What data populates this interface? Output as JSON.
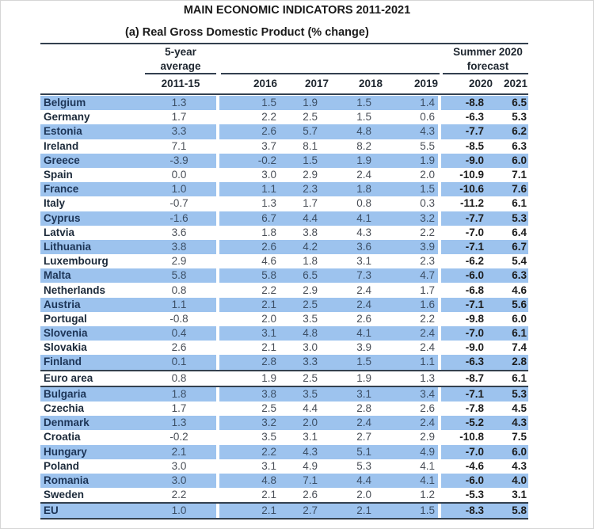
{
  "title": "MAIN ECONOMIC INDICATORS 2011-2021",
  "subtitle": "(a) Real Gross Domestic Product (% change)",
  "header": {
    "avg_line1": "5-year",
    "avg_line2": "average",
    "forecast_line1": "Summer 2020",
    "forecast_line2": "forecast",
    "columns": [
      "2011-15",
      "2016",
      "2017",
      "2018",
      "2019",
      "2020",
      "2021"
    ]
  },
  "colors": {
    "row_shade": "#9dc3ee",
    "rule": "#33404f"
  },
  "rows": [
    {
      "name": "Belgium",
      "shaded": true,
      "values": [
        "1.3",
        "1.5",
        "1.9",
        "1.5",
        "1.4",
        "-8.8",
        "6.5"
      ]
    },
    {
      "name": "Germany",
      "shaded": false,
      "values": [
        "1.7",
        "2.2",
        "2.5",
        "1.5",
        "0.6",
        "-6.3",
        "5.3"
      ]
    },
    {
      "name": "Estonia",
      "shaded": true,
      "values": [
        "3.3",
        "2.6",
        "5.7",
        "4.8",
        "4.3",
        "-7.7",
        "6.2"
      ]
    },
    {
      "name": "Ireland",
      "shaded": false,
      "values": [
        "7.1",
        "3.7",
        "8.1",
        "8.2",
        "5.5",
        "-8.5",
        "6.3"
      ]
    },
    {
      "name": "Greece",
      "shaded": true,
      "values": [
        "-3.9",
        "-0.2",
        "1.5",
        "1.9",
        "1.9",
        "-9.0",
        "6.0"
      ]
    },
    {
      "name": "Spain",
      "shaded": false,
      "values": [
        "0.0",
        "3.0",
        "2.9",
        "2.4",
        "2.0",
        "-10.9",
        "7.1"
      ]
    },
    {
      "name": "France",
      "shaded": true,
      "values": [
        "1.0",
        "1.1",
        "2.3",
        "1.8",
        "1.5",
        "-10.6",
        "7.6"
      ]
    },
    {
      "name": "Italy",
      "shaded": false,
      "values": [
        "-0.7",
        "1.3",
        "1.7",
        "0.8",
        "0.3",
        "-11.2",
        "6.1"
      ]
    },
    {
      "name": "Cyprus",
      "shaded": true,
      "values": [
        "-1.6",
        "6.7",
        "4.4",
        "4.1",
        "3.2",
        "-7.7",
        "5.3"
      ]
    },
    {
      "name": "Latvia",
      "shaded": false,
      "values": [
        "3.6",
        "1.8",
        "3.8",
        "4.3",
        "2.2",
        "-7.0",
        "6.4"
      ]
    },
    {
      "name": "Lithuania",
      "shaded": true,
      "values": [
        "3.8",
        "2.6",
        "4.2",
        "3.6",
        "3.9",
        "-7.1",
        "6.7"
      ]
    },
    {
      "name": "Luxembourg",
      "shaded": false,
      "values": [
        "2.9",
        "4.6",
        "1.8",
        "3.1",
        "2.3",
        "-6.2",
        "5.4"
      ]
    },
    {
      "name": "Malta",
      "shaded": true,
      "values": [
        "5.8",
        "5.8",
        "6.5",
        "7.3",
        "4.7",
        "-6.0",
        "6.3"
      ]
    },
    {
      "name": "Netherlands",
      "shaded": false,
      "values": [
        "0.8",
        "2.2",
        "2.9",
        "2.4",
        "1.7",
        "-6.8",
        "4.6"
      ]
    },
    {
      "name": "Austria",
      "shaded": true,
      "values": [
        "1.1",
        "2.1",
        "2.5",
        "2.4",
        "1.6",
        "-7.1",
        "5.6"
      ]
    },
    {
      "name": "Portugal",
      "shaded": false,
      "values": [
        "-0.8",
        "2.0",
        "3.5",
        "2.6",
        "2.2",
        "-9.8",
        "6.0"
      ]
    },
    {
      "name": "Slovenia",
      "shaded": true,
      "values": [
        "0.4",
        "3.1",
        "4.8",
        "4.1",
        "2.4",
        "-7.0",
        "6.1"
      ]
    },
    {
      "name": "Slovakia",
      "shaded": false,
      "values": [
        "2.6",
        "2.1",
        "3.0",
        "3.9",
        "2.4",
        "-9.0",
        "7.4"
      ]
    },
    {
      "name": "Finland",
      "shaded": true,
      "rule_below": true,
      "values": [
        "0.1",
        "2.8",
        "3.3",
        "1.5",
        "1.1",
        "-6.3",
        "2.8"
      ]
    },
    {
      "name": "Euro area",
      "shaded": false,
      "rule_below": true,
      "values": [
        "0.8",
        "1.9",
        "2.5",
        "1.9",
        "1.3",
        "-8.7",
        "6.1"
      ]
    },
    {
      "name": "Bulgaria",
      "shaded": true,
      "values": [
        "1.8",
        "3.8",
        "3.5",
        "3.1",
        "3.4",
        "-7.1",
        "5.3"
      ]
    },
    {
      "name": "Czechia",
      "shaded": false,
      "values": [
        "1.7",
        "2.5",
        "4.4",
        "2.8",
        "2.6",
        "-7.8",
        "4.5"
      ]
    },
    {
      "name": "Denmark",
      "shaded": true,
      "values": [
        "1.3",
        "3.2",
        "2.0",
        "2.4",
        "2.4",
        "-5.2",
        "4.3"
      ]
    },
    {
      "name": "Croatia",
      "shaded": false,
      "values": [
        "-0.2",
        "3.5",
        "3.1",
        "2.7",
        "2.9",
        "-10.8",
        "7.5"
      ]
    },
    {
      "name": "Hungary",
      "shaded": true,
      "values": [
        "2.1",
        "2.2",
        "4.3",
        "5.1",
        "4.9",
        "-7.0",
        "6.0"
      ]
    },
    {
      "name": "Poland",
      "shaded": false,
      "values": [
        "3.0",
        "3.1",
        "4.9",
        "5.3",
        "4.1",
        "-4.6",
        "4.3"
      ]
    },
    {
      "name": "Romania",
      "shaded": true,
      "values": [
        "3.0",
        "4.8",
        "7.1",
        "4.4",
        "4.1",
        "-6.0",
        "4.0"
      ]
    },
    {
      "name": "Sweden",
      "shaded": false,
      "rule_below": true,
      "values": [
        "2.2",
        "2.1",
        "2.6",
        "2.0",
        "1.2",
        "-5.3",
        "3.1"
      ]
    },
    {
      "name": "EU",
      "shaded": true,
      "rule_below": true,
      "values": [
        "1.0",
        "2.1",
        "2.7",
        "2.1",
        "1.5",
        "-8.3",
        "5.8"
      ]
    }
  ]
}
